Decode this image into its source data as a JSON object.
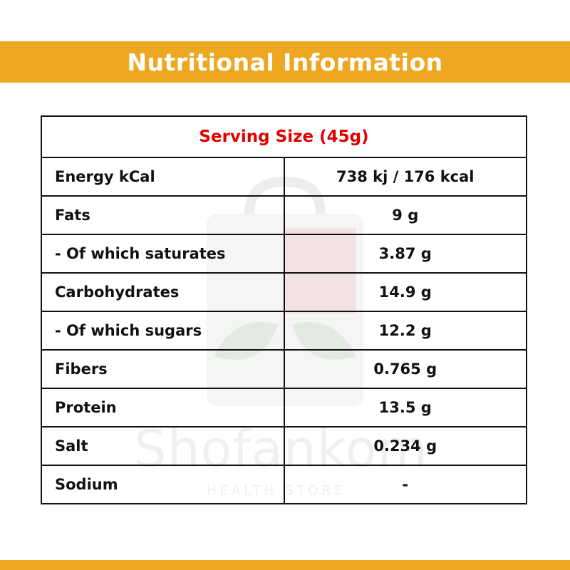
{
  "header": {
    "title": "Nutritional Information"
  },
  "serving_size": "Serving Size (45g)",
  "rows": [
    {
      "label": "Energy kCal",
      "value": "738 kj / 176 kcal"
    },
    {
      "label": "Fats",
      "value": "9 g"
    },
    {
      "label": "- Of which saturates",
      "value": "3.87 g"
    },
    {
      "label": "Carbohydrates",
      "value": "14.9 g"
    },
    {
      "label": "- Of which sugars",
      "value": "12.2 g"
    },
    {
      "label": "Fibers",
      "value": "0.765 g"
    },
    {
      "label": "Protein",
      "value": "13.5 g"
    },
    {
      "label": "Salt",
      "value": "0.234 g"
    },
    {
      "label": "Sodium",
      "value": "-"
    }
  ],
  "watermark": {
    "brand": "Shofankom",
    "tagline": "HEALTH STORE"
  },
  "colors": {
    "banner": "#eea721",
    "serving_text": "#e00000",
    "border": "#111111"
  }
}
